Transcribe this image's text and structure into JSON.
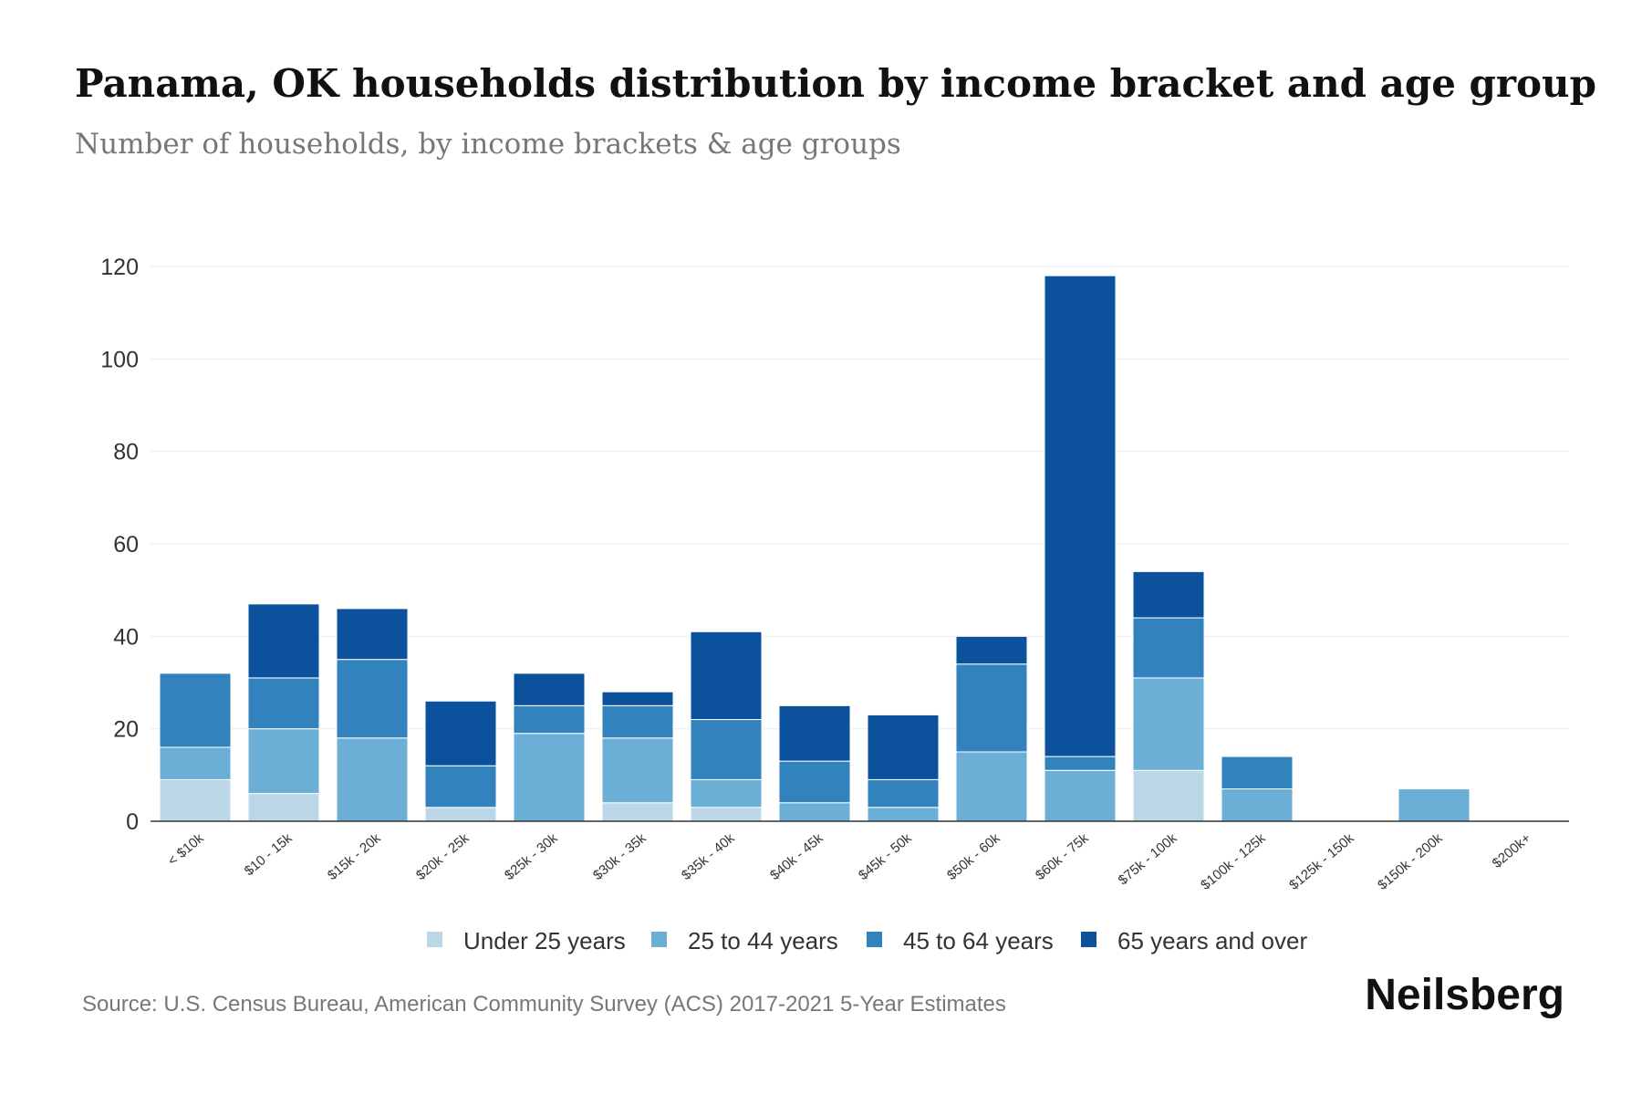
{
  "chart_data": {
    "type": "bar",
    "stacked": true,
    "title": "Panama, OK households distribution by income bracket and age group",
    "subtitle": "Number of households, by income brackets & age groups",
    "xlabel": "",
    "ylabel": "",
    "ylim": [
      0,
      120
    ],
    "yticks": [
      "0",
      "20",
      "40",
      "60",
      "80",
      "100",
      "120"
    ],
    "grid": true,
    "legend_position": "bottom",
    "categories": [
      "< $10k",
      "$10 - 15k",
      "$15k - 20k",
      "$20k - 25k",
      "$25k - 30k",
      "$30k - 35k",
      "$35k - 40k",
      "$40k - 45k",
      "$45k - 50k",
      "$50k - 60k",
      "$60k - 75k",
      "$75k - 100k",
      "$100k - 125k",
      "$125k - 150k",
      "$150k - 200k",
      "$200k+"
    ],
    "series": [
      {
        "name": "Under 25 years",
        "color": "#bcd8e8",
        "values": [
          9,
          6,
          0,
          3,
          0,
          4,
          3,
          0,
          0,
          0,
          0,
          11,
          0,
          0,
          0,
          0
        ]
      },
      {
        "name": "25 to 44 years",
        "color": "#6baed6",
        "values": [
          7,
          14,
          18,
          0,
          19,
          14,
          6,
          4,
          3,
          15,
          11,
          20,
          7,
          0,
          7,
          0
        ]
      },
      {
        "name": "45 to 64 years",
        "color": "#3282bd",
        "values": [
          16,
          11,
          17,
          9,
          6,
          7,
          13,
          9,
          6,
          19,
          3,
          13,
          7,
          0,
          0,
          0
        ]
      },
      {
        "name": "65 years and over",
        "color": "#0b519c",
        "values": [
          0,
          16,
          11,
          14,
          7,
          3,
          19,
          12,
          14,
          6,
          104,
          10,
          0,
          0,
          0,
          0
        ]
      }
    ]
  },
  "footer": {
    "source": "Source: U.S. Census Bureau, American Community Survey (ACS) 2017-2021 5-Year Estimates",
    "logo": "Neilsberg"
  }
}
